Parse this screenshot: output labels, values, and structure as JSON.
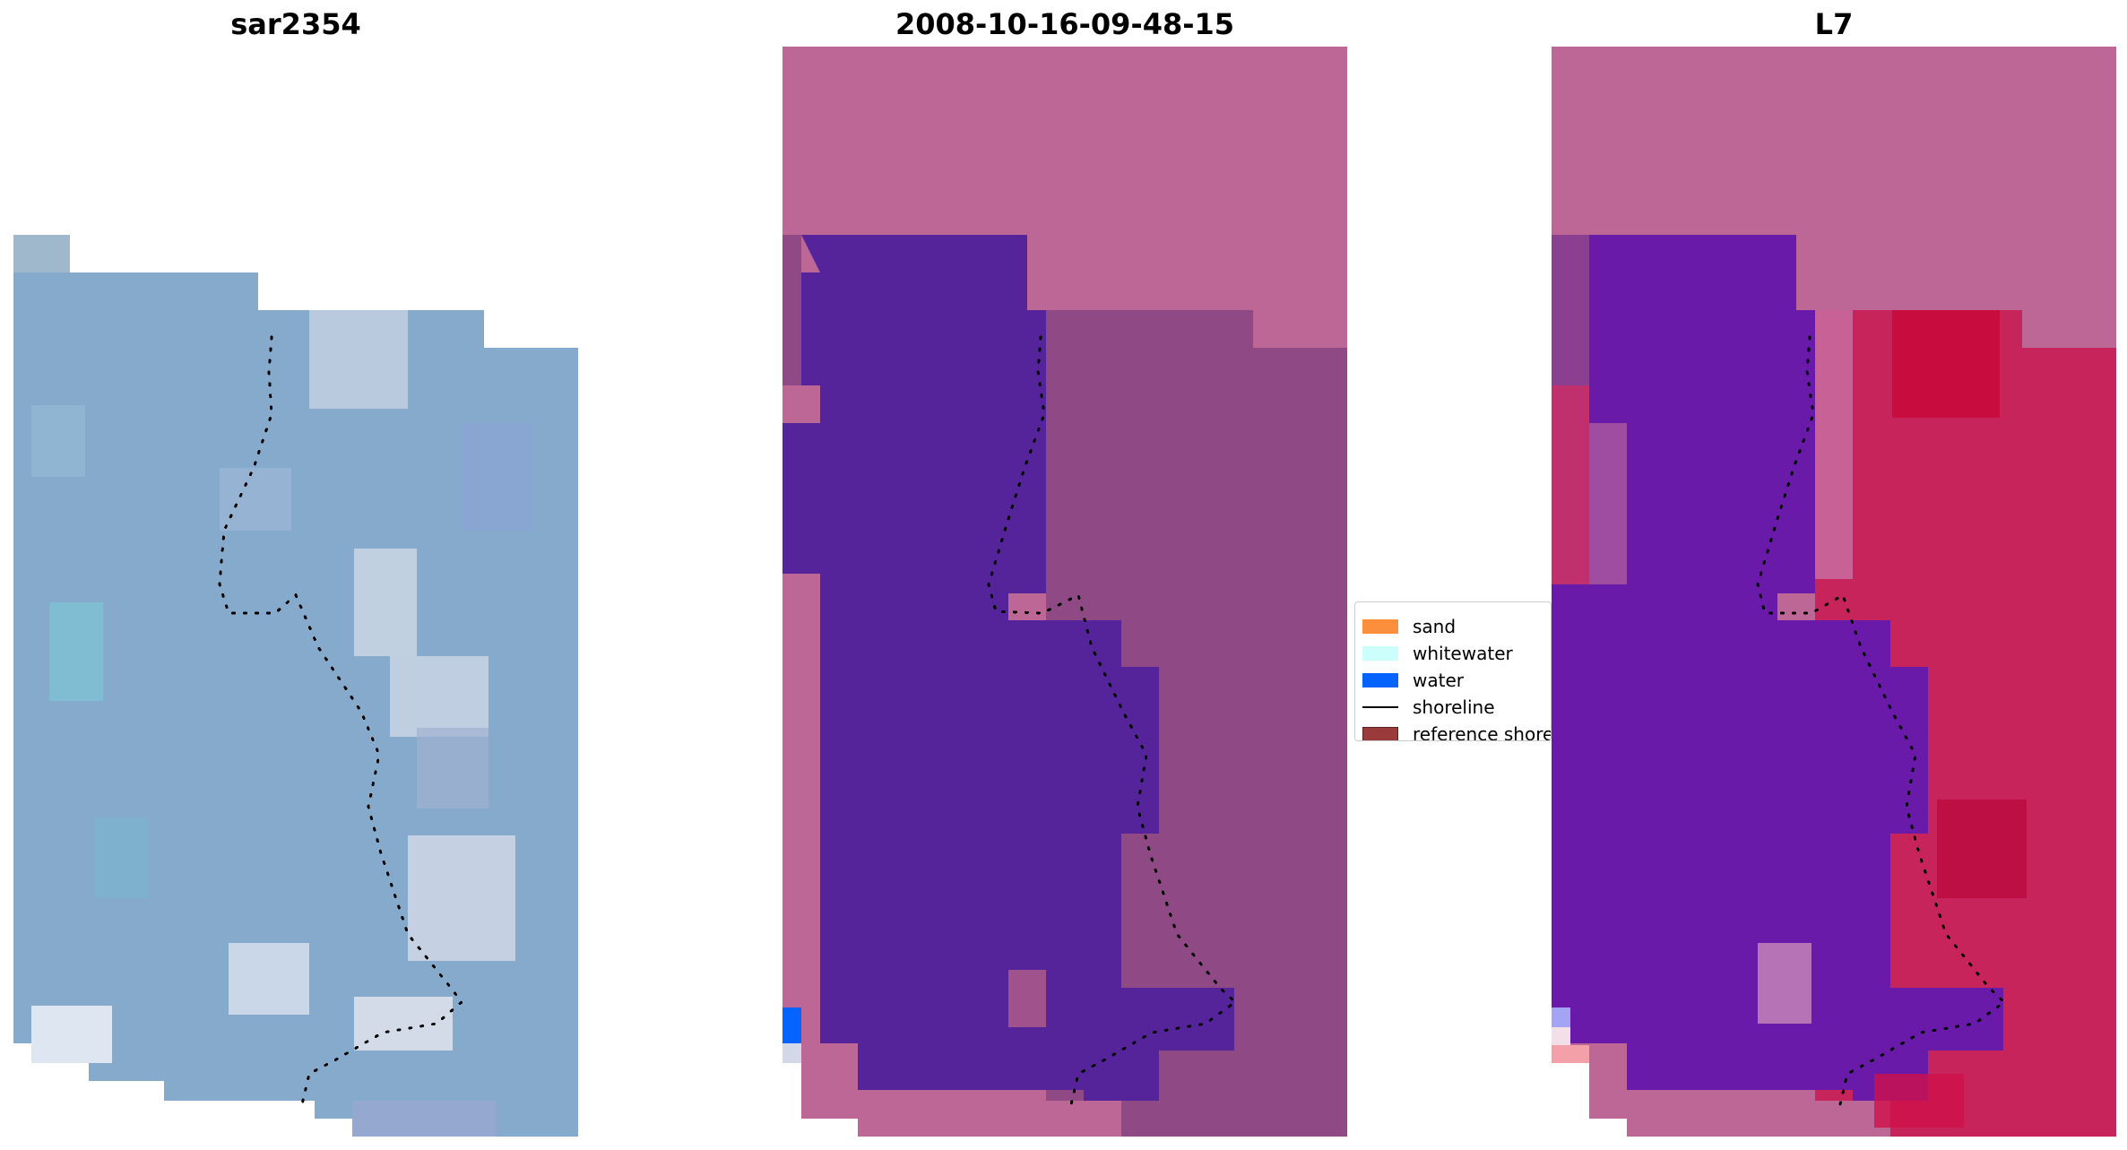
{
  "panels": [
    {
      "title": "sar2354"
    },
    {
      "title": "2008-10-16-09-48-15"
    },
    {
      "title": "L7"
    }
  ],
  "legend": {
    "items": [
      {
        "label": "sand",
        "color": "#fb8f3c",
        "kind": "patch"
      },
      {
        "label": "whitewater",
        "color": "#ccfffb",
        "kind": "patch"
      },
      {
        "label": "water",
        "color": "#0564ff",
        "kind": "patch"
      },
      {
        "label": "shoreline",
        "color": "#000000",
        "kind": "line"
      },
      {
        "label": "reference shoreline",
        "color": "#9a3a3a",
        "kind": "patch"
      }
    ]
  },
  "colors": {
    "land_pink": "#bd6797",
    "water_purple": "#55249a",
    "sand_mauve": "#8f4a86",
    "sar_blue": "#86aacb",
    "l7_red": "#c8245c",
    "l7_purple": "#6a1aa9"
  }
}
